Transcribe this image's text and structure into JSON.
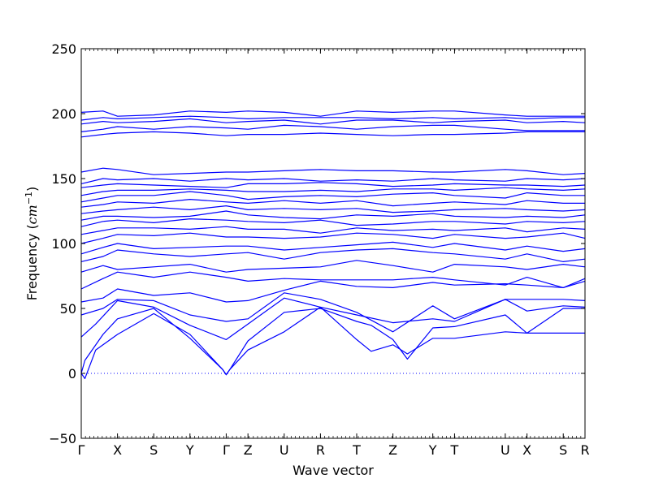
{
  "chart_data": {
    "type": "line",
    "title": "",
    "xlabel": "Wave vector",
    "ylabel_main": "Frequency (",
    "ylabel_unit": "cm",
    "ylabel_exp": "−1",
    "ylabel_close": ")",
    "ylim": [
      -50,
      250
    ],
    "y_ticks": [
      -50,
      0,
      50,
      100,
      150,
      200,
      250
    ],
    "y_tick_labels": [
      "−50",
      "0",
      "50",
      "100",
      "150",
      "200",
      "250"
    ],
    "x_ticks": [
      {
        "label": "Γ",
        "pos": 0.0
      },
      {
        "label": "X",
        "pos": 0.5
      },
      {
        "label": "S",
        "pos": 1.0
      },
      {
        "label": "Y",
        "pos": 1.5
      },
      {
        "label": "Γ",
        "pos": 2.0
      },
      {
        "label": "Z",
        "pos": 2.3
      },
      {
        "label": "U",
        "pos": 2.8
      },
      {
        "label": "R",
        "pos": 3.3
      },
      {
        "label": "T",
        "pos": 3.8
      },
      {
        "label": "Z",
        "pos": 4.3
      },
      {
        "label": "Y",
        "pos": 4.85
      },
      {
        "label": "T",
        "pos": 5.15
      },
      {
        "label": "U",
        "pos": 5.85
      },
      {
        "label": "X",
        "pos": 6.15
      },
      {
        "label": "S",
        "pos": 6.65
      },
      {
        "label": "R",
        "pos": 6.95
      }
    ],
    "xlim": [
      0,
      6.95
    ],
    "zero_line": true,
    "series_color": "#0000ff",
    "series": [
      {
        "x": [
          0,
          0.05,
          0.2,
          0.5,
          1.0,
          1.5,
          1.95,
          2.0,
          2.05,
          2.3,
          2.8,
          3.3,
          3.8,
          4.0,
          4.3,
          4.5,
          4.85,
          5.15,
          5.85,
          6.15,
          6.65,
          6.95
        ],
        "y": [
          0,
          -4,
          18,
          30,
          46,
          30,
          3,
          -1,
          3,
          18,
          32,
          51,
          26,
          17,
          22,
          15,
          27,
          27,
          32,
          31,
          31,
          31
        ]
      },
      {
        "x": [
          0,
          0.05,
          0.3,
          0.5,
          1.0,
          1.5,
          1.95,
          2.0,
          2.05,
          2.3,
          2.8,
          3.3,
          3.8,
          4.0,
          4.3,
          4.5,
          4.85,
          5.15,
          5.85,
          6.15,
          6.65,
          6.95
        ],
        "y": [
          0,
          10,
          30,
          42,
          50,
          27,
          3,
          -1,
          3,
          25,
          47,
          50,
          40,
          37,
          26,
          11,
          35,
          36,
          45,
          31,
          50,
          50
        ]
      },
      {
        "x": [
          0,
          0.2,
          0.5,
          1.0,
          1.5,
          2.0,
          2.3,
          2.8,
          3.3,
          3.8,
          4.3,
          4.85,
          5.15,
          5.85,
          6.15,
          6.65,
          6.95
        ],
        "y": [
          28,
          38,
          56,
          51,
          37,
          26,
          38,
          58,
          51,
          45,
          39,
          42,
          40,
          57,
          48,
          52,
          51
        ]
      },
      {
        "x": [
          0,
          0.3,
          0.5,
          1.0,
          1.5,
          2.0,
          2.3,
          2.8,
          3.3,
          3.8,
          4.3,
          4.85,
          5.15,
          5.85,
          6.15,
          6.65,
          6.95
        ],
        "y": [
          45,
          50,
          57,
          56,
          45,
          40,
          42,
          62,
          57,
          47,
          32,
          52,
          42,
          57,
          57,
          57,
          56
        ]
      },
      {
        "x": [
          0,
          0.3,
          0.5,
          1.0,
          1.5,
          2.0,
          2.3,
          2.8,
          3.3,
          3.8,
          4.3,
          4.85,
          5.15,
          5.85,
          6.15,
          6.65,
          6.95
        ],
        "y": [
          55,
          58,
          65,
          60,
          62,
          55,
          56,
          64,
          71,
          67,
          66,
          70,
          68,
          69,
          68,
          66,
          73
        ]
      },
      {
        "x": [
          0,
          0.3,
          0.5,
          1.0,
          1.5,
          2.0,
          2.3,
          2.8,
          3.3,
          3.8,
          4.3,
          4.85,
          5.15,
          5.85,
          6.15,
          6.65,
          6.95
        ],
        "y": [
          65,
          73,
          78,
          74,
          78,
          74,
          71,
          73,
          72,
          72,
          72,
          74,
          72,
          68,
          74,
          66,
          71
        ]
      },
      {
        "x": [
          0,
          0.3,
          0.5,
          1.0,
          1.5,
          2.0,
          2.3,
          2.8,
          3.3,
          3.8,
          4.3,
          4.85,
          5.15,
          5.85,
          6.15,
          6.65,
          6.95
        ],
        "y": [
          78,
          83,
          80,
          82,
          84,
          78,
          80,
          81,
          82,
          87,
          83,
          78,
          84,
          82,
          80,
          84,
          82
        ]
      },
      {
        "x": [
          0,
          0.3,
          0.5,
          1.0,
          1.5,
          2.0,
          2.3,
          2.8,
          3.3,
          3.8,
          4.3,
          4.85,
          5.15,
          5.85,
          6.15,
          6.65,
          6.95
        ],
        "y": [
          86,
          90,
          95,
          92,
          90,
          92,
          93,
          88,
          93,
          95,
          96,
          93,
          92,
          88,
          92,
          86,
          88
        ]
      },
      {
        "x": [
          0,
          0.3,
          0.5,
          1.0,
          1.5,
          2.0,
          2.3,
          2.8,
          3.3,
          3.8,
          4.3,
          4.85,
          5.15,
          5.85,
          6.15,
          6.65,
          6.95
        ],
        "y": [
          92,
          97,
          100,
          96,
          97,
          98,
          98,
          95,
          97,
          99,
          101,
          97,
          100,
          95,
          98,
          94,
          96
        ]
      },
      {
        "x": [
          0,
          0.3,
          0.5,
          1.0,
          1.5,
          2.0,
          2.3,
          2.8,
          3.3,
          3.8,
          4.3,
          4.85,
          5.15,
          5.85,
          6.15,
          6.65,
          6.95
        ],
        "y": [
          100,
          104,
          107,
          106,
          108,
          105,
          105,
          104,
          105,
          108,
          107,
          104,
          107,
          104,
          105,
          108,
          104
        ]
      },
      {
        "x": [
          0,
          0.3,
          0.5,
          1.0,
          1.5,
          2.0,
          2.3,
          2.8,
          3.3,
          3.8,
          4.3,
          4.85,
          5.15,
          5.85,
          6.15,
          6.65,
          6.95
        ],
        "y": [
          107,
          110,
          112,
          112,
          111,
          113,
          111,
          111,
          108,
          112,
          110,
          111,
          110,
          112,
          109,
          112,
          111
        ]
      },
      {
        "x": [
          0,
          0.3,
          0.5,
          1.0,
          1.5,
          2.0,
          2.3,
          2.8,
          3.3,
          3.8,
          4.3,
          4.85,
          5.15,
          5.85,
          6.15,
          6.65,
          6.95
        ],
        "y": [
          113,
          117,
          118,
          116,
          119,
          118,
          117,
          116,
          118,
          114,
          115,
          117,
          117,
          115,
          117,
          116,
          117
        ]
      },
      {
        "x": [
          0,
          0.3,
          0.5,
          1.0,
          1.5,
          2.0,
          2.3,
          2.8,
          3.3,
          3.8,
          4.3,
          4.85,
          5.15,
          5.85,
          6.15,
          6.65,
          6.95
        ],
        "y": [
          118,
          121,
          121,
          120,
          121,
          125,
          122,
          120,
          119,
          122,
          121,
          123,
          121,
          120,
          121,
          120,
          122
        ]
      },
      {
        "x": [
          0,
          0.3,
          0.5,
          1.0,
          1.5,
          2.0,
          2.3,
          2.8,
          3.3,
          3.8,
          4.3,
          4.85,
          5.15,
          5.85,
          6.15,
          6.65,
          6.95
        ],
        "y": [
          123,
          125,
          126,
          128,
          126,
          129,
          126,
          127,
          126,
          127,
          124,
          125,
          126,
          127,
          126,
          125,
          126
        ]
      },
      {
        "x": [
          0,
          0.3,
          0.5,
          1.0,
          1.5,
          2.0,
          2.3,
          2.8,
          3.3,
          3.8,
          4.3,
          4.85,
          5.15,
          5.85,
          6.15,
          6.65,
          6.95
        ],
        "y": [
          128,
          130,
          132,
          131,
          134,
          132,
          131,
          133,
          131,
          133,
          129,
          131,
          132,
          130,
          133,
          131,
          131
        ]
      },
      {
        "x": [
          0,
          0.3,
          0.5,
          1.0,
          1.5,
          2.0,
          2.3,
          2.8,
          3.3,
          3.8,
          4.3,
          4.85,
          5.15,
          5.85,
          6.15,
          6.65,
          6.95
        ],
        "y": [
          132,
          135,
          137,
          137,
          140,
          137,
          134,
          136,
          137,
          136,
          138,
          139,
          137,
          135,
          139,
          137,
          137
        ]
      },
      {
        "x": [
          0,
          0.3,
          0.5,
          1.0,
          1.5,
          2.0,
          2.3,
          2.8,
          3.3,
          3.8,
          4.3,
          4.85,
          5.15,
          5.85,
          6.15,
          6.65,
          6.95
        ],
        "y": [
          137,
          140,
          141,
          141,
          142,
          141,
          140,
          140,
          141,
          140,
          142,
          142,
          141,
          143,
          142,
          141,
          142
        ]
      },
      {
        "x": [
          0,
          0.3,
          0.5,
          1.0,
          1.5,
          2.0,
          2.3,
          2.8,
          3.3,
          3.8,
          4.3,
          4.85,
          5.15,
          5.85,
          6.15,
          6.65,
          6.95
        ],
        "y": [
          143,
          145,
          146,
          145,
          144,
          143,
          146,
          146,
          147,
          146,
          144,
          145,
          146,
          145,
          145,
          144,
          145
        ]
      },
      {
        "x": [
          0,
          0.3,
          0.5,
          1.0,
          1.5,
          2.0,
          2.3,
          2.8,
          3.3,
          3.8,
          4.3,
          4.85,
          5.15,
          5.85,
          6.15,
          6.65,
          6.95
        ],
        "y": [
          146,
          150,
          149,
          150,
          148,
          150,
          149,
          150,
          148,
          149,
          148,
          150,
          149,
          148,
          150,
          149,
          150
        ]
      },
      {
        "x": [
          0,
          0.3,
          0.5,
          1.0,
          1.5,
          2.0,
          2.3,
          2.8,
          3.3,
          3.8,
          4.3,
          4.85,
          5.15,
          5.85,
          6.15,
          6.65,
          6.95
        ],
        "y": [
          155,
          158,
          157,
          153,
          154,
          155,
          155,
          156,
          157,
          156,
          156,
          155,
          155,
          157,
          156,
          153,
          154
        ]
      },
      {
        "x": [
          0,
          0.3,
          0.5,
          1.0,
          1.5,
          2.0,
          2.3,
          2.8,
          3.3,
          3.8,
          4.3,
          4.85,
          5.15,
          5.85,
          6.15,
          6.65,
          6.95
        ],
        "y": [
          182,
          184,
          185,
          186,
          185,
          183,
          184,
          184,
          185,
          184,
          183,
          184,
          184,
          185,
          186,
          186,
          186
        ]
      },
      {
        "x": [
          0,
          0.3,
          0.5,
          1.0,
          1.5,
          2.0,
          2.3,
          2.8,
          3.3,
          3.8,
          4.3,
          4.85,
          5.15,
          5.85,
          6.15,
          6.65,
          6.95
        ],
        "y": [
          186,
          188,
          190,
          188,
          190,
          189,
          188,
          191,
          190,
          188,
          190,
          191,
          191,
          188,
          187,
          187,
          187
        ]
      },
      {
        "x": [
          0,
          0.3,
          0.5,
          1.0,
          1.5,
          2.0,
          2.3,
          2.8,
          3.3,
          3.8,
          4.3,
          4.85,
          5.15,
          5.85,
          6.15,
          6.65,
          6.95
        ],
        "y": [
          192,
          194,
          193,
          194,
          196,
          193,
          194,
          195,
          192,
          195,
          195,
          193,
          194,
          195,
          193,
          194,
          193
        ]
      },
      {
        "x": [
          0,
          0.3,
          0.5,
          1.0,
          1.5,
          2.0,
          2.3,
          2.8,
          3.3,
          3.8,
          4.3,
          4.85,
          5.15,
          5.85,
          6.15,
          6.65,
          6.95
        ],
        "y": [
          195,
          197,
          196,
          197,
          198,
          197,
          196,
          197,
          197,
          197,
          196,
          197,
          196,
          197,
          196,
          197,
          197
        ]
      },
      {
        "x": [
          0,
          0.3,
          0.5,
          1.0,
          1.5,
          2.0,
          2.3,
          2.8,
          3.3,
          3.8,
          4.3,
          4.85,
          5.15,
          5.85,
          6.15,
          6.65,
          6.95
        ],
        "y": [
          201,
          202,
          198,
          199,
          202,
          201,
          202,
          201,
          198,
          202,
          201,
          202,
          202,
          199,
          198,
          198,
          198
        ]
      }
    ]
  }
}
